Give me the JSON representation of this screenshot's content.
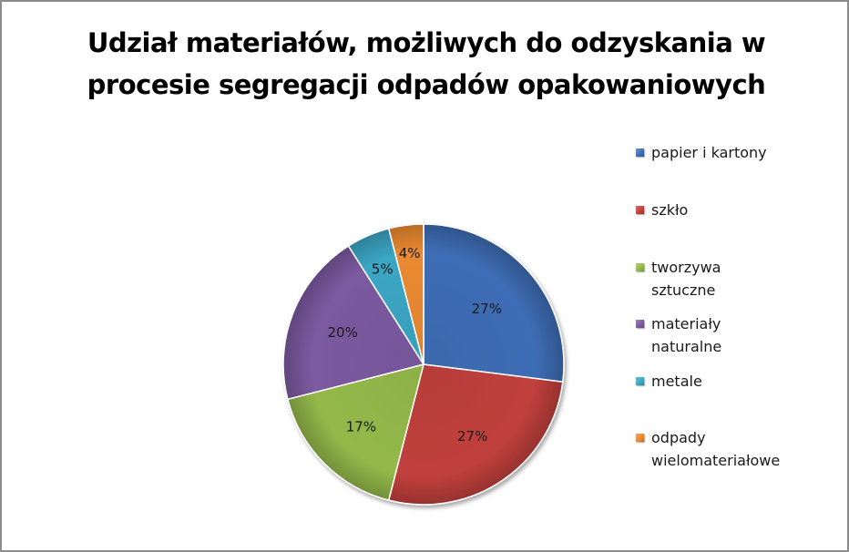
{
  "chart_data": {
    "type": "pie",
    "title_lines": [
      "Udział materiałów, możliwych do odzyskania w",
      "procesie segregacji odpadów opakowaniowych"
    ],
    "categories": [
      "papier i kartony",
      "szkło",
      "tworzywa sztuczne",
      "materiały naturalne",
      "metale",
      "odpady wielomateriałowe"
    ],
    "legend_text": [
      "papier i kartony",
      "szkło",
      "tworzywa\nsztuczne",
      "materiały\nnaturalne",
      "metale",
      "odpady\nwielomateriałowe"
    ],
    "values": [
      27,
      27,
      17,
      20,
      5,
      4
    ],
    "labels": [
      "27%",
      "27%",
      "17%",
      "20%",
      "5%",
      "4%"
    ],
    "colors": [
      "#3e6db5",
      "#c0403c",
      "#94b94a",
      "#7b5aa0",
      "#3ba6c4",
      "#ea8a31"
    ],
    "legend_position": "right"
  }
}
